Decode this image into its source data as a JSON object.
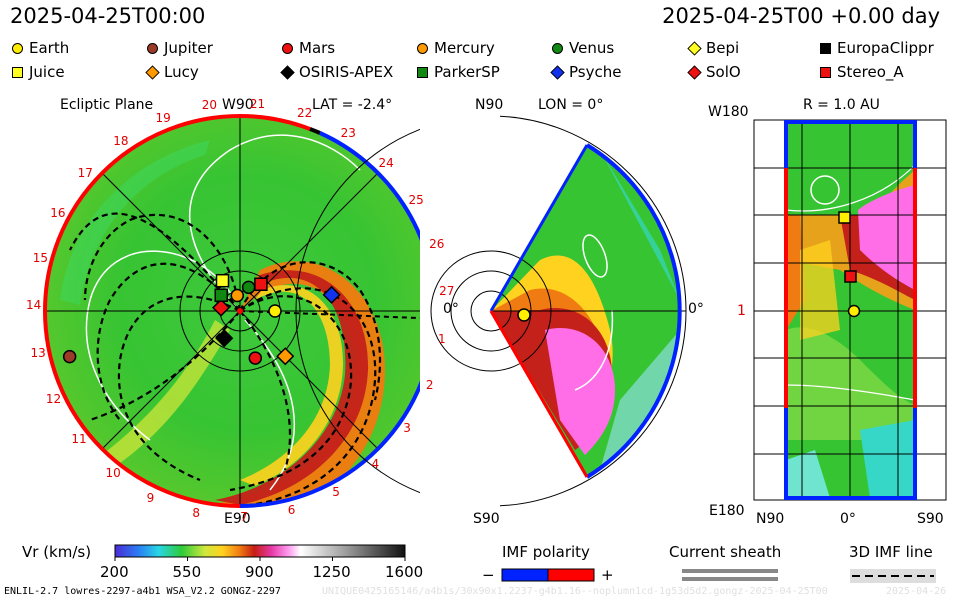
{
  "header": {
    "timestamp": "2025-04-25T00:00",
    "offset_label": "2025-04-25T00 +0.00 day"
  },
  "legend": {
    "items": [
      {
        "name": "Earth",
        "color": "#ffee00",
        "shape": "circle",
        "row": 0,
        "col": 0
      },
      {
        "name": "Jupiter",
        "color": "#9c3a28",
        "shape": "circle",
        "row": 0,
        "col": 1
      },
      {
        "name": "Mars",
        "color": "#ee1111",
        "shape": "circle",
        "row": 0,
        "col": 2
      },
      {
        "name": "Mercury",
        "color": "#ff9900",
        "shape": "circle",
        "row": 0,
        "col": 3
      },
      {
        "name": "Venus",
        "color": "#118811",
        "shape": "circle",
        "row": 0,
        "col": 4
      },
      {
        "name": "Bepi",
        "color": "#ffff22",
        "shape": "diamond",
        "row": 0,
        "col": 5
      },
      {
        "name": "EuropaClippr",
        "color": "#000000",
        "shape": "square",
        "row": 0,
        "col": 6
      },
      {
        "name": "Juice",
        "color": "#ffff22",
        "shape": "square",
        "row": 1,
        "col": 0
      },
      {
        "name": "Lucy",
        "color": "#ff9900",
        "shape": "diamond",
        "row": 1,
        "col": 1
      },
      {
        "name": "OSIRIS-APEX",
        "color": "#000000",
        "shape": "diamond",
        "row": 1,
        "col": 2
      },
      {
        "name": "ParkerSP",
        "color": "#118811",
        "shape": "square",
        "row": 1,
        "col": 3
      },
      {
        "name": "Psyche",
        "color": "#1133ee",
        "shape": "diamond",
        "row": 1,
        "col": 4
      },
      {
        "name": "SolO",
        "color": "#ee1111",
        "shape": "diamond",
        "row": 1,
        "col": 5
      },
      {
        "name": "Stereo_A",
        "color": "#ee1111",
        "shape": "square",
        "row": 1,
        "col": 6
      }
    ]
  },
  "chart_data": [
    {
      "type": "heatmap",
      "panel": "ecliptic",
      "title": "Ecliptic Plane",
      "lat_label": "LAT = -2.4°",
      "top_label": "W90",
      "bottom_label": "E90",
      "zero_label": "0°",
      "sector_numbers": [
        "1",
        "2",
        "3",
        "4",
        "5",
        "6",
        "7",
        "8",
        "9",
        "10",
        "11",
        "12",
        "13",
        "14",
        "15",
        "16",
        "17",
        "18",
        "19",
        "20",
        "21",
        "22",
        "23",
        "24",
        "25",
        "26",
        "27"
      ],
      "bodies": [
        {
          "name": "Earth",
          "r_au": 1.0,
          "lon_deg": 0
        },
        {
          "name": "Jupiter",
          "r_au": 4.9,
          "lon_deg": -165
        },
        {
          "name": "Mars",
          "r_au": 1.4,
          "lon_deg": -72
        },
        {
          "name": "Mercury",
          "r_au": 0.45,
          "lon_deg": 100
        },
        {
          "name": "Venus",
          "r_au": 0.72,
          "lon_deg": 70
        },
        {
          "name": "Psyche",
          "r_au": 2.6,
          "lon_deg": 10
        },
        {
          "name": "SolO",
          "r_au": 0.55,
          "lon_deg": 170
        },
        {
          "name": "Lucy",
          "r_au": 1.8,
          "lon_deg": -45
        },
        {
          "name": "OSIRIS-APEX",
          "r_au": 0.9,
          "lon_deg": -120
        },
        {
          "name": "Juice",
          "r_au": 1.0,
          "lon_deg": 120
        },
        {
          "name": "ParkerSP",
          "r_au": 0.7,
          "lon_deg": 140
        },
        {
          "name": "Stereo_A",
          "r_au": 0.97,
          "lon_deg": 52
        }
      ]
    },
    {
      "type": "heatmap",
      "panel": "meridional",
      "lon_label": "LON = 0°",
      "top_label": "N90",
      "bottom_label": "S90",
      "zero_label": "0°"
    },
    {
      "type": "heatmap",
      "panel": "surface",
      "r_label": "R = 1.0 AU",
      "top_label": "W180",
      "bottom_label": "E180",
      "mid_label": "1",
      "x_labels": [
        "N90",
        "0°",
        "S90"
      ]
    }
  ],
  "colorbar": {
    "label": "Vr (km/s)",
    "ticks": [
      "200",
      "550",
      "900",
      "1250",
      "1600"
    ],
    "min": 200,
    "max": 1600
  },
  "imf": {
    "label": "IMF polarity",
    "minus": "−",
    "plus": "+"
  },
  "current_sheath": {
    "label": "Current sheath"
  },
  "imf_line": {
    "label": "3D IMF line"
  },
  "footer": {
    "model": "ENLIL-2.7 lowres-2297-a4b1 WSA_V2.2 GONGZ-2297",
    "run_id": "UNIQUE0425165146/a4b1s/30x90x1.2237-g4b1.16--noplumn1cd-1g53d5d2.gongz-2025-04-25T00",
    "date": "2025-04-26"
  },
  "colors": {
    "red_polarity": "#ff0000",
    "blue_polarity": "#0022ff"
  }
}
